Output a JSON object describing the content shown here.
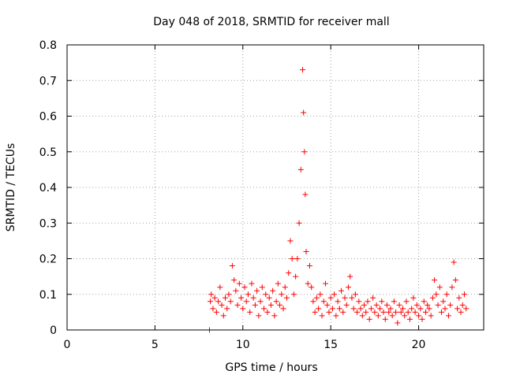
{
  "chart_data": {
    "type": "scatter",
    "title": "Day 048 of 2018, SRMTID for receiver mall",
    "xlabel": "GPS time / hours",
    "ylabel": "SRMTID / TECUs",
    "xlim": [
      0,
      23.7
    ],
    "ylim": [
      0,
      0.8
    ],
    "xticks": [
      0,
      5,
      10,
      15,
      20
    ],
    "xtick_labels": [
      "0",
      "5",
      "10",
      "15",
      "20"
    ],
    "yticks": [
      0,
      0.1,
      0.2,
      0.3,
      0.4,
      0.5,
      0.6,
      0.7,
      0.8
    ],
    "ytick_labels": [
      "0",
      "0.1",
      "0.2",
      "0.3",
      "0.4",
      "0.5",
      "0.6",
      "0.7",
      "0.8"
    ],
    "grid": true,
    "marker": "+",
    "color": "#ff0000",
    "series": [
      {
        "name": "SRMTID",
        "x": [
          8.1,
          8.15,
          8.2,
          8.3,
          8.4,
          8.5,
          8.6,
          8.7,
          8.8,
          8.9,
          9.0,
          9.1,
          9.2,
          9.3,
          9.4,
          9.5,
          9.6,
          9.7,
          9.8,
          9.9,
          10.0,
          10.1,
          10.2,
          10.3,
          10.4,
          10.5,
          10.6,
          10.7,
          10.8,
          10.9,
          11.0,
          11.1,
          11.2,
          11.3,
          11.4,
          11.5,
          11.6,
          11.7,
          11.8,
          11.9,
          12.0,
          12.1,
          12.2,
          12.3,
          12.4,
          12.5,
          12.6,
          12.7,
          12.8,
          12.9,
          13.0,
          13.1,
          13.2,
          13.3,
          13.4,
          13.45,
          13.5,
          13.55,
          13.6,
          13.7,
          13.8,
          13.9,
          14.0,
          14.1,
          14.2,
          14.3,
          14.4,
          14.5,
          14.6,
          14.7,
          14.8,
          14.9,
          15.0,
          15.1,
          15.2,
          15.3,
          15.4,
          15.5,
          15.6,
          15.7,
          15.8,
          15.9,
          16.0,
          16.1,
          16.2,
          16.3,
          16.4,
          16.5,
          16.6,
          16.7,
          16.8,
          16.9,
          17.0,
          17.1,
          17.2,
          17.3,
          17.4,
          17.5,
          17.6,
          17.7,
          17.8,
          17.9,
          18.0,
          18.1,
          18.2,
          18.3,
          18.4,
          18.5,
          18.6,
          18.7,
          18.8,
          18.9,
          19.0,
          19.1,
          19.2,
          19.3,
          19.4,
          19.5,
          19.6,
          19.7,
          19.8,
          19.9,
          20.0,
          20.1,
          20.2,
          20.3,
          20.4,
          20.5,
          20.6,
          20.7,
          20.8,
          20.9,
          21.0,
          21.1,
          21.2,
          21.3,
          21.4,
          21.5,
          21.6,
          21.7,
          21.8,
          21.9,
          22.0,
          22.1,
          22.2,
          22.3,
          22.4,
          22.5,
          22.6,
          22.7
        ],
        "y": [
          0.0,
          0.08,
          0.1,
          0.06,
          0.09,
          0.05,
          0.08,
          0.12,
          0.07,
          0.04,
          0.09,
          0.06,
          0.1,
          0.08,
          0.18,
          0.14,
          0.11,
          0.07,
          0.13,
          0.09,
          0.06,
          0.12,
          0.08,
          0.1,
          0.05,
          0.13,
          0.09,
          0.07,
          0.11,
          0.04,
          0.08,
          0.12,
          0.06,
          0.1,
          0.05,
          0.09,
          0.07,
          0.11,
          0.04,
          0.08,
          0.13,
          0.07,
          0.1,
          0.06,
          0.12,
          0.09,
          0.16,
          0.25,
          0.2,
          0.1,
          0.15,
          0.2,
          0.3,
          0.45,
          0.73,
          0.61,
          0.5,
          0.38,
          0.22,
          0.13,
          0.18,
          0.12,
          0.08,
          0.05,
          0.09,
          0.06,
          0.1,
          0.04,
          0.08,
          0.13,
          0.07,
          0.05,
          0.09,
          0.06,
          0.1,
          0.04,
          0.08,
          0.06,
          0.11,
          0.05,
          0.09,
          0.07,
          0.12,
          0.15,
          0.09,
          0.06,
          0.1,
          0.05,
          0.08,
          0.06,
          0.04,
          0.07,
          0.05,
          0.08,
          0.03,
          0.06,
          0.09,
          0.05,
          0.07,
          0.04,
          0.06,
          0.08,
          0.05,
          0.03,
          0.07,
          0.05,
          0.06,
          0.04,
          0.08,
          0.05,
          0.02,
          0.07,
          0.05,
          0.06,
          0.04,
          0.08,
          0.05,
          0.03,
          0.06,
          0.09,
          0.05,
          0.07,
          0.04,
          0.06,
          0.03,
          0.08,
          0.05,
          0.07,
          0.06,
          0.04,
          0.09,
          0.14,
          0.1,
          0.07,
          0.12,
          0.05,
          0.08,
          0.06,
          0.1,
          0.04,
          0.07,
          0.12,
          0.19,
          0.14,
          0.06,
          0.09,
          0.05,
          0.07,
          0.1,
          0.06
        ]
      }
    ]
  }
}
